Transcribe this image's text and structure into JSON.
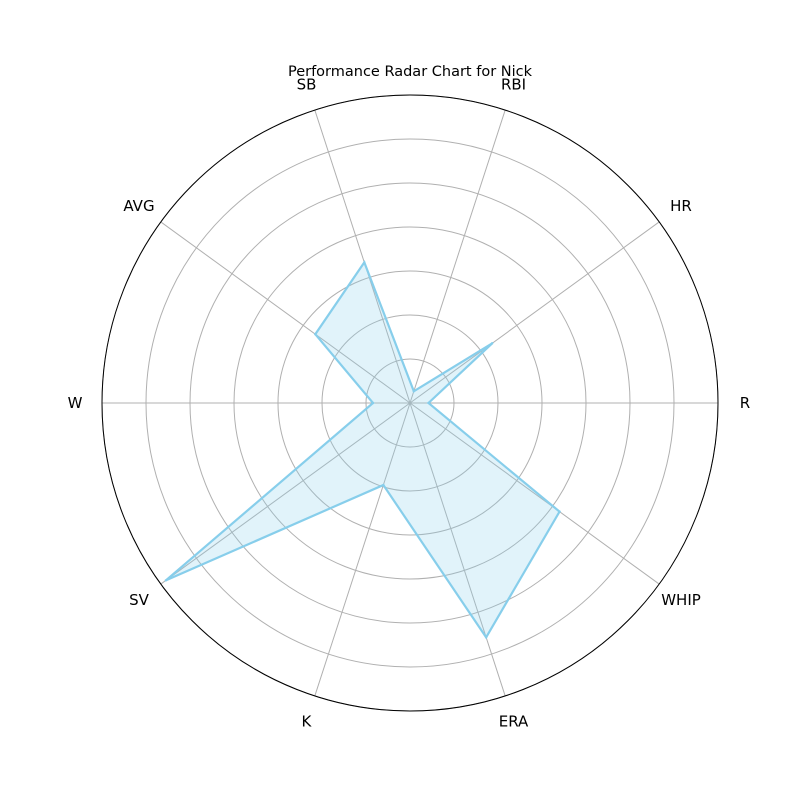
{
  "chart_data": {
    "type": "radar",
    "title": "Performance Radar Chart for Nick",
    "categories": [
      "R",
      "HR",
      "RBI",
      "SB",
      "AVG",
      "W",
      "SV",
      "K",
      "ERA",
      "WHIP"
    ],
    "values": [
      0.06,
      0.33,
      0.04,
      0.48,
      0.38,
      0.12,
      0.98,
      0.28,
      0.8,
      0.6
    ],
    "rlim": [
      0,
      1
    ],
    "grid": true,
    "grid_rings": 7,
    "series_color": "#87ceeb",
    "fill_color": "#87ceeb",
    "fill_opacity": 0.25,
    "grid_color": "#b0b0b0",
    "frame_color": "#000000"
  }
}
